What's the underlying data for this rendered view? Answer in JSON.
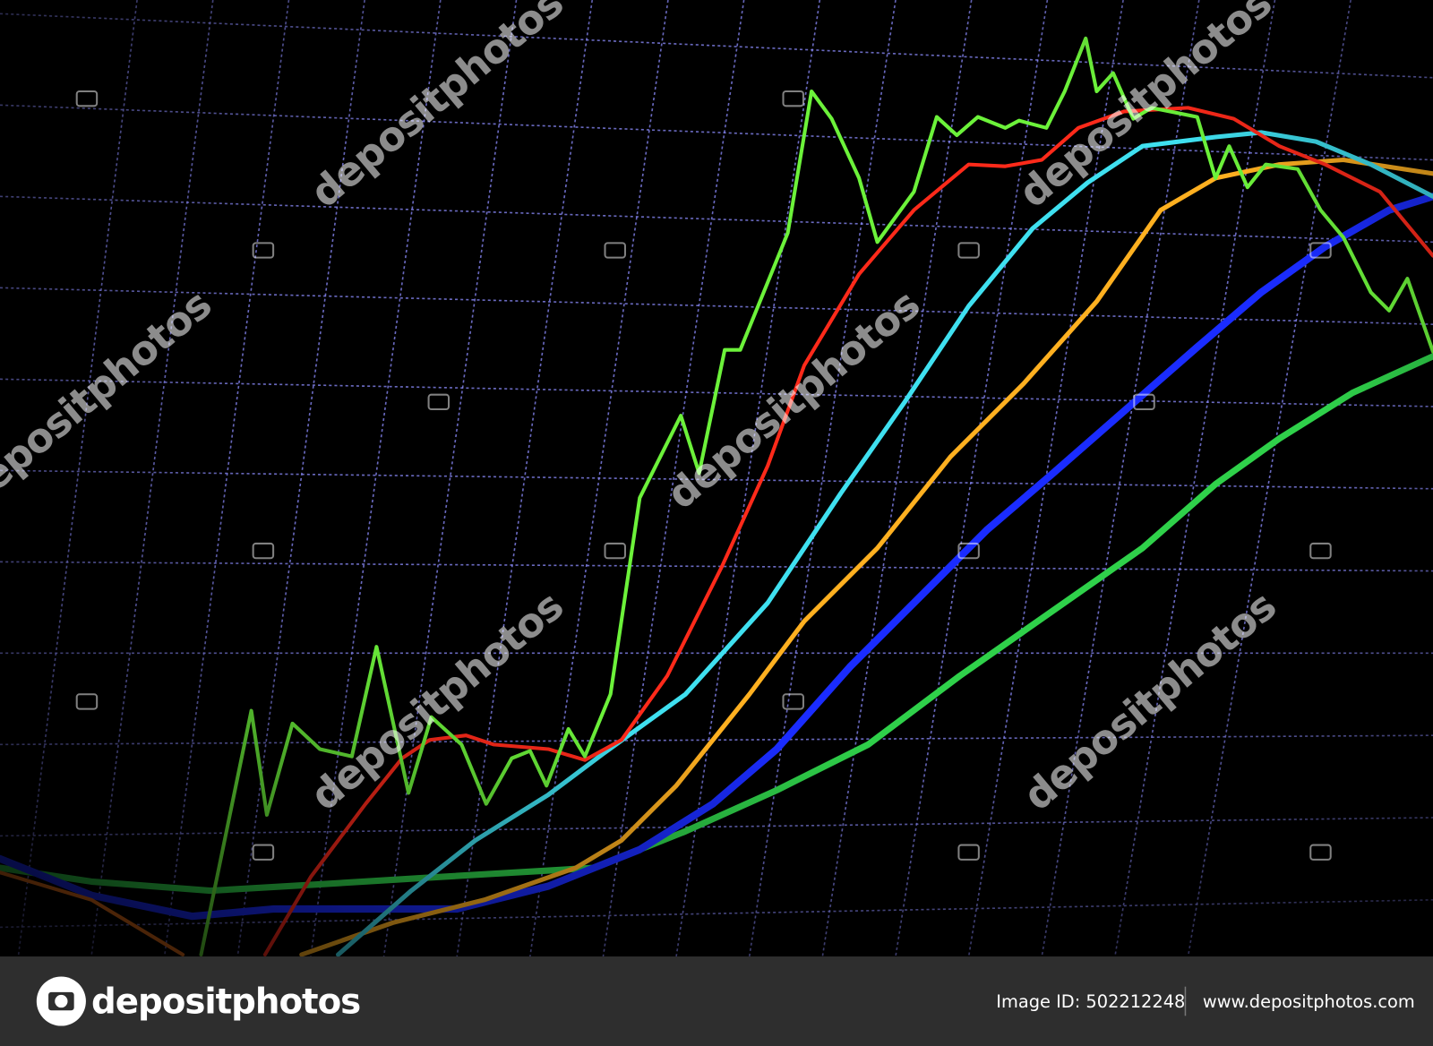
{
  "watermark": "depositphotos",
  "footer": {
    "brand": "depositphotos",
    "image_id": "Image ID: 502212248",
    "website": "www.depositphotos.com"
  }
}
